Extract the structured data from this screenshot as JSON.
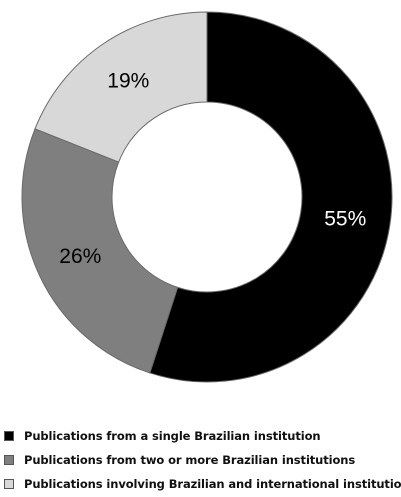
{
  "chart_data": {
    "type": "pie",
    "variant": "donut",
    "slices": [
      {
        "label": "Publications from a single Brazilian institution",
        "value": 55,
        "display": "55%",
        "color": "#000000",
        "text_color": "#ffffff"
      },
      {
        "label": "Publications from two or more Brazilian institutions",
        "value": 26,
        "display": "26%",
        "color": "#7f7f7f",
        "text_color": "#000000"
      },
      {
        "label": "Publications involving Brazilian and international institutions",
        "value": 19,
        "display": "19%",
        "color": "#d8d8d8",
        "text_color": "#000000"
      }
    ],
    "start_angle": "12 o'clock",
    "direction": "clockwise",
    "legend_position": "bottom-left"
  },
  "legend": {
    "items": [
      {
        "label": "Publications from a single Brazilian institution",
        "color": "#000000"
      },
      {
        "label": "Publications from two or more Brazilian institutions",
        "color": "#7f7f7f"
      },
      {
        "label": "Publications involving Brazilian and international institutions",
        "color": "#d8d8d8"
      }
    ]
  }
}
